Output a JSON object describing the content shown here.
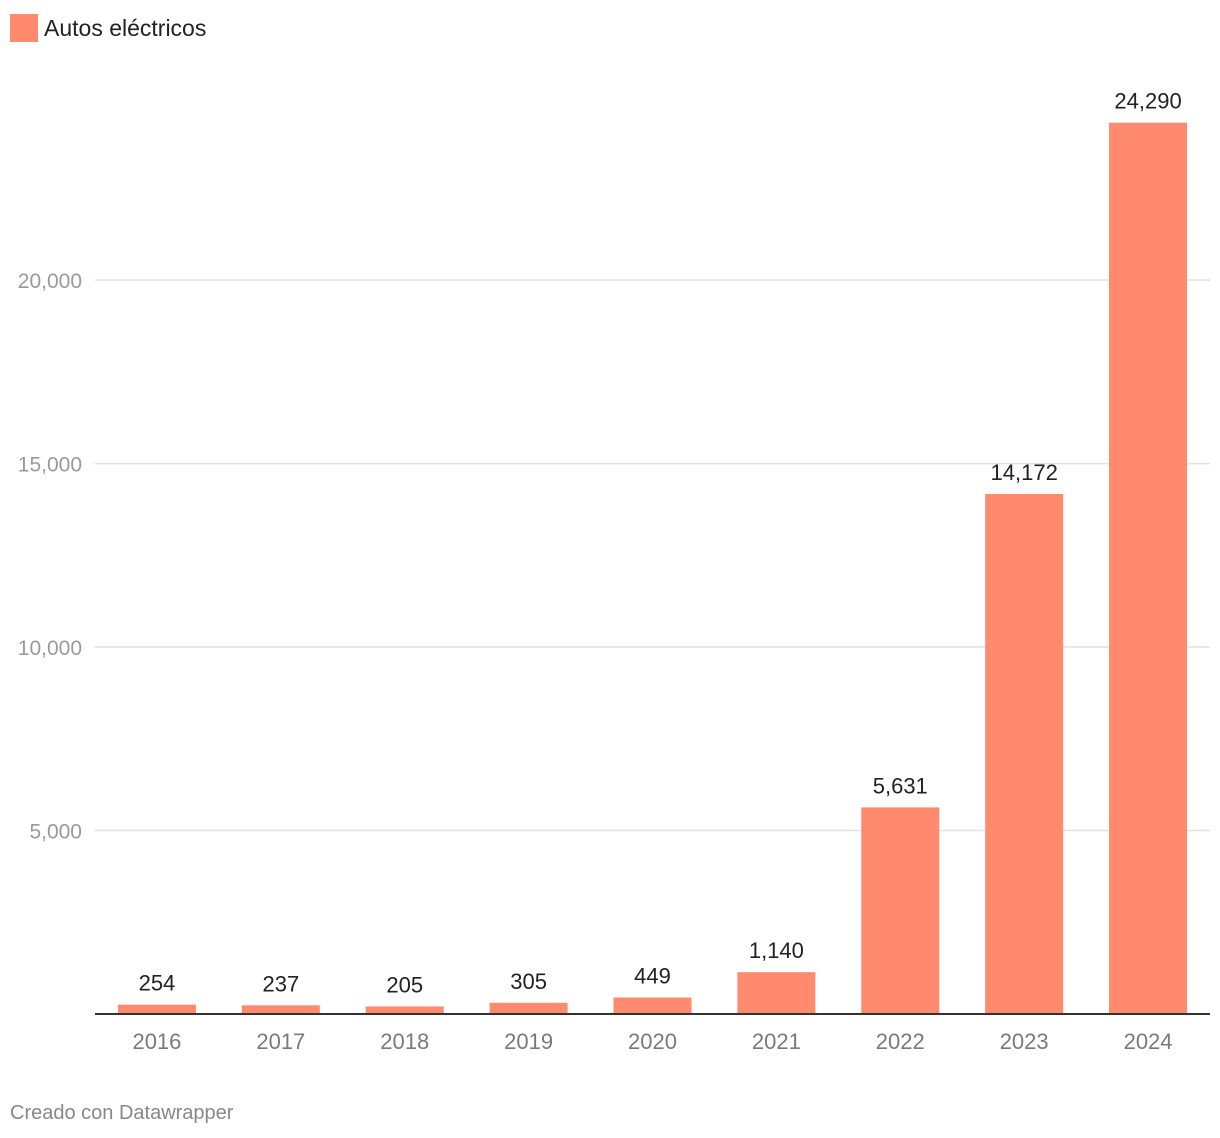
{
  "chart_data": {
    "type": "bar",
    "categories": [
      "2016",
      "2017",
      "2018",
      "2019",
      "2020",
      "2021",
      "2022",
      "2023",
      "2024"
    ],
    "series": [
      {
        "name": "Autos eléctricos",
        "color": "#ff8a6e",
        "values": [
          254,
          237,
          205,
          305,
          449,
          1140,
          5631,
          14172,
          24290
        ],
        "value_labels": [
          "254",
          "237",
          "205",
          "305",
          "449",
          "1,140",
          "5,631",
          "14,172",
          "24,290"
        ]
      }
    ],
    "yticks": [
      5000,
      10000,
      15000,
      20000
    ],
    "ytick_labels": [
      "5,000",
      "10,000",
      "15,000",
      "20,000"
    ],
    "ylim": [
      0,
      25000
    ],
    "grid": true,
    "legend_position": "top-left",
    "title": "",
    "xlabel": "",
    "ylabel": ""
  },
  "footer": {
    "credit": "Creado con Datawrapper"
  }
}
